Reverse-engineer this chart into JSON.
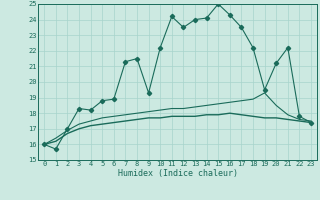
{
  "x": [
    0,
    1,
    2,
    3,
    4,
    5,
    6,
    7,
    8,
    9,
    10,
    11,
    12,
    13,
    14,
    15,
    16,
    17,
    18,
    19,
    20,
    21,
    22,
    23
  ],
  "main_line": [
    16.0,
    15.7,
    17.0,
    18.3,
    18.2,
    18.8,
    18.9,
    21.3,
    21.5,
    19.3,
    22.2,
    24.2,
    23.5,
    24.0,
    24.1,
    25.0,
    24.3,
    23.5,
    22.2,
    19.5,
    21.2,
    22.2,
    17.8,
    17.4
  ],
  "smooth_line1": [
    16.0,
    16.4,
    16.9,
    17.3,
    17.5,
    17.7,
    17.8,
    17.9,
    18.0,
    18.1,
    18.2,
    18.3,
    18.3,
    18.4,
    18.5,
    18.6,
    18.7,
    18.8,
    18.9,
    19.3,
    18.5,
    17.9,
    17.6,
    17.5
  ],
  "smooth_line2": [
    16.0,
    16.2,
    16.7,
    17.0,
    17.2,
    17.3,
    17.4,
    17.5,
    17.6,
    17.7,
    17.7,
    17.8,
    17.8,
    17.8,
    17.9,
    17.9,
    18.0,
    17.9,
    17.8,
    17.7,
    17.7,
    17.6,
    17.5,
    17.4
  ],
  "line_color": "#1a6b5a",
  "bg_color": "#cce9e1",
  "grid_color": "#a8d4cc",
  "ylim": [
    15,
    25
  ],
  "xlim": [
    -0.5,
    23.5
  ],
  "yticks": [
    15,
    16,
    17,
    18,
    19,
    20,
    21,
    22,
    23,
    24,
    25
  ],
  "xticks": [
    0,
    1,
    2,
    3,
    4,
    5,
    6,
    7,
    8,
    9,
    10,
    11,
    12,
    13,
    14,
    15,
    16,
    17,
    18,
    19,
    20,
    21,
    22,
    23
  ],
  "xlabel": "Humidex (Indice chaleur)",
  "marker": "D",
  "marker_size": 2.2,
  "tick_fontsize": 5.0,
  "xlabel_fontsize": 6.0
}
